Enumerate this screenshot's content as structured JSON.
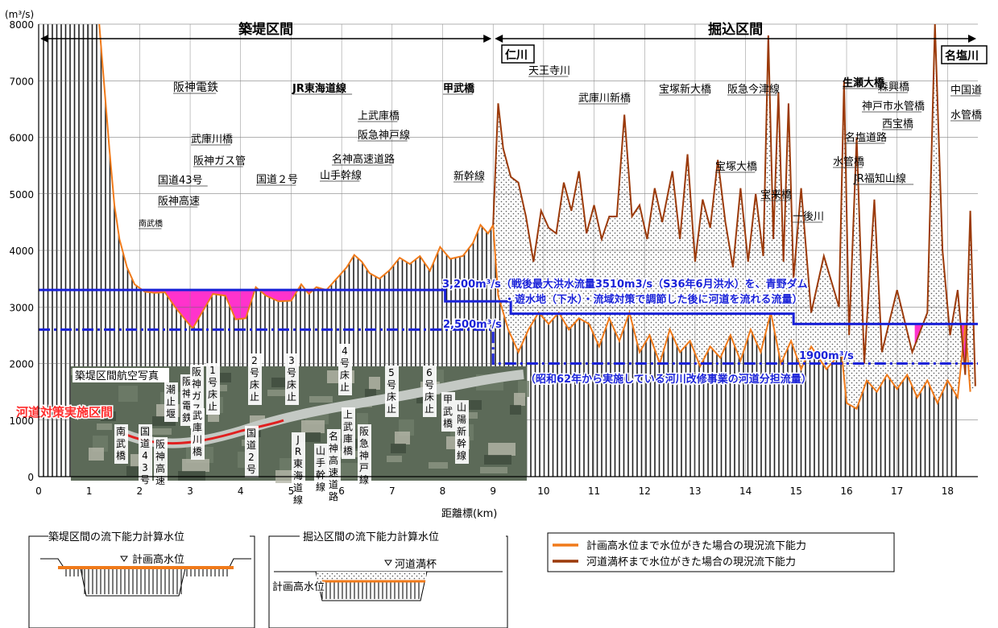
{
  "chart_data": {
    "type": "line",
    "y_unit": "(m³/s)",
    "xlabel": "距離標(km)",
    "xlim": [
      0,
      18.6
    ],
    "ylim": [
      0,
      8000
    ],
    "x_ticks": [
      "0",
      "1",
      "2",
      "3",
      "4",
      "5",
      "6",
      "7",
      "8",
      "9",
      "10",
      "11",
      "12",
      "13",
      "14",
      "15",
      "16",
      "17",
      "18"
    ],
    "y_ticks": [
      "0",
      "1000",
      "2000",
      "3000",
      "4000",
      "5000",
      "6000",
      "7000",
      "8000"
    ],
    "grid": "vertical-hatch",
    "sections": [
      {
        "label": "築堤区間",
        "x_from": 0,
        "x_to": 9
      },
      {
        "label": "掘込区間",
        "x_from": 9,
        "x_to": 18.6
      }
    ],
    "series": [
      {
        "name": "計画高水位まで水位がきた場合の現況流下能力",
        "color": "#f07a1a",
        "points": [
          [
            1.2,
            8000
          ],
          [
            1.3,
            6900
          ],
          [
            1.4,
            5800
          ],
          [
            1.5,
            4800
          ],
          [
            1.6,
            4200
          ],
          [
            1.75,
            3700
          ],
          [
            1.9,
            3400
          ],
          [
            2.1,
            3270
          ],
          [
            2.3,
            3250
          ],
          [
            2.5,
            3260
          ],
          [
            2.7,
            3000
          ],
          [
            2.9,
            2780
          ],
          [
            3.05,
            2620
          ],
          [
            3.2,
            2850
          ],
          [
            3.45,
            3230
          ],
          [
            3.7,
            3200
          ],
          [
            3.9,
            2780
          ],
          [
            4.1,
            2800
          ],
          [
            4.3,
            3350
          ],
          [
            4.5,
            3200
          ],
          [
            4.75,
            3100
          ],
          [
            5.0,
            3110
          ],
          [
            5.2,
            3400
          ],
          [
            5.35,
            3230
          ],
          [
            5.5,
            3350
          ],
          [
            5.7,
            3300
          ],
          [
            5.9,
            3500
          ],
          [
            6.1,
            3700
          ],
          [
            6.25,
            3920
          ],
          [
            6.4,
            3800
          ],
          [
            6.55,
            3600
          ],
          [
            6.75,
            3500
          ],
          [
            6.95,
            3650
          ],
          [
            7.15,
            3870
          ],
          [
            7.35,
            3760
          ],
          [
            7.55,
            3900
          ],
          [
            7.75,
            3640
          ],
          [
            7.95,
            4060
          ],
          [
            8.15,
            3850
          ],
          [
            8.4,
            3900
          ],
          [
            8.6,
            4130
          ],
          [
            8.75,
            4450
          ],
          [
            8.9,
            4300
          ],
          [
            9.0,
            4450
          ],
          [
            9.1,
            3200
          ],
          [
            9.2,
            2900
          ],
          [
            9.3,
            2600
          ],
          [
            9.5,
            2200
          ],
          [
            9.7,
            2600
          ],
          [
            9.9,
            2900
          ],
          [
            10.1,
            2700
          ],
          [
            10.3,
            2900
          ],
          [
            10.5,
            2600
          ],
          [
            10.7,
            2800
          ],
          [
            10.9,
            2700
          ],
          [
            11.1,
            2300
          ],
          [
            11.3,
            2800
          ],
          [
            11.5,
            2400
          ],
          [
            11.7,
            2900
          ],
          [
            11.9,
            2200
          ],
          [
            12.1,
            2500
          ],
          [
            12.3,
            2000
          ],
          [
            12.5,
            2600
          ],
          [
            12.7,
            2200
          ],
          [
            12.9,
            2400
          ],
          [
            13.1,
            1950
          ],
          [
            13.3,
            2300
          ],
          [
            13.5,
            2100
          ],
          [
            13.7,
            2500
          ],
          [
            13.9,
            2050
          ],
          [
            14.1,
            2600
          ],
          [
            14.3,
            2200
          ],
          [
            14.5,
            2900
          ],
          [
            14.7,
            2000
          ],
          [
            14.9,
            2400
          ],
          [
            15.1,
            1900
          ],
          [
            15.3,
            2300
          ],
          [
            15.6,
            1900
          ],
          [
            15.9,
            2200
          ],
          [
            16.0,
            1300
          ],
          [
            16.2,
            1200
          ],
          [
            16.4,
            1700
          ],
          [
            16.6,
            1500
          ],
          [
            16.8,
            1800
          ],
          [
            17.0,
            1550
          ],
          [
            17.2,
            1800
          ],
          [
            17.4,
            1400
          ],
          [
            17.6,
            1700
          ],
          [
            17.8,
            1300
          ],
          [
            18.0,
            1700
          ],
          [
            18.2,
            1400
          ],
          [
            18.35,
            2700
          ],
          [
            18.45,
            1500
          ]
        ]
      },
      {
        "name": "河道満杯まで水位がきた場合の現況流下能力",
        "color": "#9b3a0a",
        "points": [
          [
            9.0,
            4450
          ],
          [
            9.1,
            6600
          ],
          [
            9.2,
            5800
          ],
          [
            9.35,
            5300
          ],
          [
            9.5,
            5200
          ],
          [
            9.65,
            4600
          ],
          [
            9.8,
            3800
          ],
          [
            9.95,
            4700
          ],
          [
            10.1,
            4400
          ],
          [
            10.25,
            4300
          ],
          [
            10.4,
            5200
          ],
          [
            10.55,
            4700
          ],
          [
            10.7,
            5400
          ],
          [
            10.85,
            4300
          ],
          [
            11.0,
            4800
          ],
          [
            11.15,
            4200
          ],
          [
            11.3,
            4600
          ],
          [
            11.45,
            4600
          ],
          [
            11.6,
            6400
          ],
          [
            11.75,
            4600
          ],
          [
            11.9,
            4800
          ],
          [
            12.05,
            4200
          ],
          [
            12.2,
            5100
          ],
          [
            12.35,
            4500
          ],
          [
            12.55,
            5400
          ],
          [
            12.7,
            4200
          ],
          [
            12.85,
            5700
          ],
          [
            13.0,
            3800
          ],
          [
            13.15,
            4900
          ],
          [
            13.3,
            4400
          ],
          [
            13.45,
            5600
          ],
          [
            13.6,
            4500
          ],
          [
            13.75,
            3700
          ],
          [
            13.9,
            5100
          ],
          [
            14.05,
            3800
          ],
          [
            14.2,
            5000
          ],
          [
            14.35,
            3900
          ],
          [
            14.45,
            7800
          ],
          [
            14.55,
            4200
          ],
          [
            14.65,
            6800
          ],
          [
            14.75,
            3800
          ],
          [
            14.85,
            6600
          ],
          [
            14.95,
            3500
          ],
          [
            15.1,
            5100
          ],
          [
            15.3,
            2900
          ],
          [
            15.55,
            3900
          ],
          [
            15.85,
            3000
          ],
          [
            15.95,
            7000
          ],
          [
            16.05,
            2500
          ],
          [
            16.2,
            6000
          ],
          [
            16.35,
            2000
          ],
          [
            16.55,
            4900
          ],
          [
            16.7,
            2200
          ],
          [
            17.0,
            3300
          ],
          [
            17.3,
            2200
          ],
          [
            17.6,
            2900
          ],
          [
            17.75,
            8000
          ],
          [
            17.9,
            4000
          ],
          [
            18.05,
            2500
          ],
          [
            18.2,
            3300
          ],
          [
            18.35,
            1800
          ],
          [
            18.45,
            4700
          ],
          [
            18.55,
            1600
          ]
        ]
      }
    ],
    "plan_lines": [
      {
        "label": "3,200m³/s（戦後最大洪水流量3510m3/s（S36年6月洪水）を、青野ダム",
        "label2": "・遊水地（下水）・流域対策で調節した後に河道を流れる流量）",
        "color": "#1a22d8",
        "style": "solid",
        "steps": [
          [
            0,
            3300
          ],
          [
            8.05,
            3300
          ],
          [
            8.05,
            3100
          ],
          [
            9.35,
            3100
          ],
          [
            9.35,
            2880
          ],
          [
            14.95,
            2880
          ],
          [
            14.95,
            2700
          ],
          [
            18.6,
            2700
          ]
        ]
      },
      {
        "label": "2,500m³/s",
        "color": "#1a22d8",
        "style": "dashdot",
        "steps": [
          [
            0,
            2600
          ],
          [
            9.0,
            2600
          ],
          [
            9.0,
            2000
          ],
          [
            18.6,
            2000
          ]
        ]
      },
      {
        "label": "1900m³/s",
        "label2": "（昭和62年から実施している河川改修事業の河道分担流量）",
        "color": "#1a22d8"
      }
    ],
    "annotations": [
      {
        "text": "仁川",
        "boxed": true
      },
      {
        "text": "天王寺川"
      },
      {
        "text": "生瀬大橋",
        "bold": true
      },
      {
        "text": "名塩川",
        "boxed": true
      },
      {
        "text": "阪神電鉄"
      },
      {
        "text": "JR東海道線",
        "bold": true
      },
      {
        "text": "甲武橋",
        "bold": true
      },
      {
        "text": "上武庫橋"
      },
      {
        "text": "阪急神戸線"
      },
      {
        "text": "名神高速道路"
      },
      {
        "text": "山手幹線"
      },
      {
        "text": "国道２号"
      },
      {
        "text": "武庫川橋"
      },
      {
        "text": "阪神ガス管"
      },
      {
        "text": "国道43号"
      },
      {
        "text": "阪神高速"
      },
      {
        "text": "南武橋"
      },
      {
        "text": "新幹線"
      },
      {
        "text": "武庫川新橋"
      },
      {
        "text": "宝塚新大橋"
      },
      {
        "text": "阪急今津線"
      },
      {
        "text": "宝塚大橋"
      },
      {
        "text": "宝来橋"
      },
      {
        "text": "一後川"
      },
      {
        "text": "水管橋"
      },
      {
        "text": "JR福知山線"
      },
      {
        "text": "名塩道路"
      },
      {
        "text": "西宝橋"
      },
      {
        "text": "神戸市水管橋"
      },
      {
        "text": "森興橋"
      },
      {
        "text": "中国道"
      },
      {
        "text": "水管橋"
      }
    ],
    "photo": {
      "title": "築堤区間航空写真",
      "red_label": "河道対策実施区間",
      "labels": [
        "潮止堰",
        "阪神電鉄",
        "阪神ガス管",
        "1号床止",
        "2号床止",
        "3号床止",
        "4号床止",
        "5号床止",
        "6号床止",
        "甲武橋",
        "山陽新幹線",
        "南武橋",
        "国道43号",
        "阪神高速",
        "武庫川橋",
        "国道2号",
        "JR東海道線",
        "山手幹線",
        "名神高速道路",
        "上武庫橋",
        "阪急神戸線"
      ]
    },
    "inset": [
      {
        "title": "築堤区間の流下能力計算水位",
        "label": "計画高水位"
      },
      {
        "title": "掘込区間の流下能力計算水位",
        "label": "河道満杯",
        "label2": "計画高水位"
      }
    ]
  }
}
